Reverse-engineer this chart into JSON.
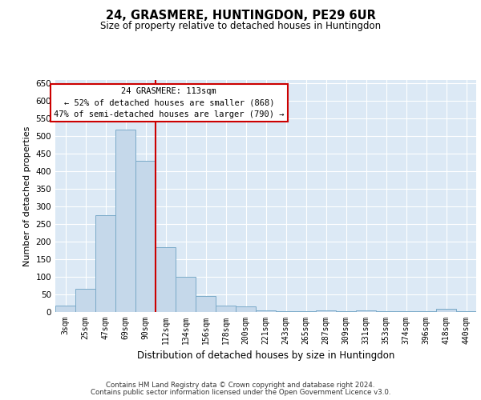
{
  "title": "24, GRASMERE, HUNTINGDON, PE29 6UR",
  "subtitle": "Size of property relative to detached houses in Huntingdon",
  "xlabel": "Distribution of detached houses by size in Huntingdon",
  "ylabel": "Number of detached properties",
  "footer_line1": "Contains HM Land Registry data © Crown copyright and database right 2024.",
  "footer_line2": "Contains public sector information licensed under the Open Government Licence v3.0.",
  "annotation_line1": "24 GRASMERE: 113sqm",
  "annotation_line2": "← 52% of detached houses are smaller (868)",
  "annotation_line3": "47% of semi-detached houses are larger (790) →",
  "bar_color": "#c5d8ea",
  "bar_edge_color": "#7aaac8",
  "marker_line_color": "#cc0000",
  "annotation_box_facecolor": "#ffffff",
  "annotation_box_edgecolor": "#cc0000",
  "background_color": "#dce9f5",
  "fig_facecolor": "#ffffff",
  "categories": [
    "3sqm",
    "25sqm",
    "47sqm",
    "69sqm",
    "90sqm",
    "112sqm",
    "134sqm",
    "156sqm",
    "178sqm",
    "200sqm",
    "221sqm",
    "243sqm",
    "265sqm",
    "287sqm",
    "309sqm",
    "331sqm",
    "353sqm",
    "374sqm",
    "396sqm",
    "418sqm",
    "440sqm"
  ],
  "values": [
    18,
    65,
    275,
    520,
    430,
    185,
    100,
    45,
    18,
    15,
    5,
    2,
    2,
    5,
    2,
    5,
    2,
    2,
    2,
    8,
    2
  ],
  "ylim": [
    0,
    660
  ],
  "yticks": [
    0,
    50,
    100,
    150,
    200,
    250,
    300,
    350,
    400,
    450,
    500,
    550,
    600,
    650
  ],
  "marker_bin_index": 5
}
